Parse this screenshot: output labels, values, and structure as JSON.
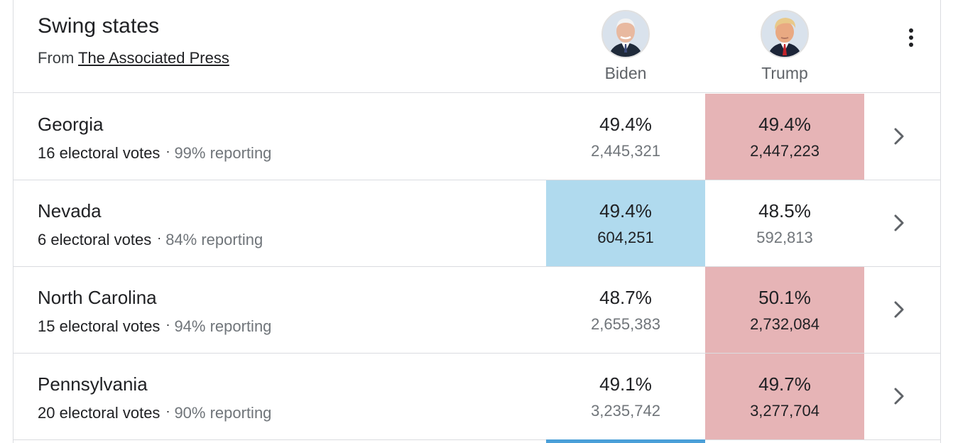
{
  "header": {
    "title": "Swing states",
    "source_prefix": "From",
    "source_link": "The Associated Press"
  },
  "candidates": [
    {
      "name": "Biden",
      "icon": "biden-avatar-icon"
    },
    {
      "name": "Trump",
      "icon": "trump-avatar-icon"
    }
  ],
  "colors": {
    "biden_lead": "#b0daee",
    "trump_lead": "#e6b4b6",
    "divider": "#dadce0",
    "muted_text": "#70757a"
  },
  "rows": [
    {
      "state": "Georgia",
      "electoral_votes": "16 electoral votes",
      "reporting": "99% reporting",
      "biden_pct": "49.4%",
      "biden_votes": "2,445,321",
      "trump_pct": "49.4%",
      "trump_votes": "2,447,223",
      "leader": "trump"
    },
    {
      "state": "Nevada",
      "electoral_votes": "6 electoral votes",
      "reporting": "84% reporting",
      "biden_pct": "49.4%",
      "biden_votes": "604,251",
      "trump_pct": "48.5%",
      "trump_votes": "592,813",
      "leader": "biden"
    },
    {
      "state": "North Carolina",
      "electoral_votes": "15 electoral votes",
      "reporting": "94% reporting",
      "biden_pct": "48.7%",
      "biden_votes": "2,655,383",
      "trump_pct": "50.1%",
      "trump_votes": "2,732,084",
      "leader": "trump"
    },
    {
      "state": "Pennsylvania",
      "electoral_votes": "20 electoral votes",
      "reporting": "90% reporting",
      "biden_pct": "49.1%",
      "biden_votes": "3,235,742",
      "trump_pct": "49.7%",
      "trump_votes": "3,277,704",
      "leader": "trump"
    }
  ]
}
